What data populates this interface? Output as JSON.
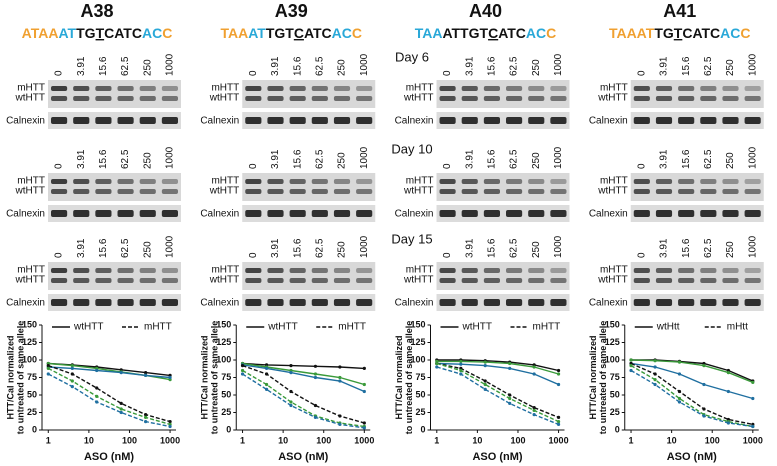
{
  "panels": [
    {
      "title": "A38",
      "sequence": [
        {
          "text": "ATAA",
          "color": "#f0a030"
        },
        {
          "text": "AT",
          "color": "#29a8d8"
        },
        {
          "text": "TG",
          "color": "#111111"
        },
        {
          "text": "T",
          "color": "#111111",
          "underline": true
        },
        {
          "text": "CATC",
          "color": "#111111"
        },
        {
          "text": "AC",
          "color": "#29a8d8"
        },
        {
          "text": "C",
          "color": "#f0a030"
        }
      ]
    },
    {
      "title": "A39",
      "sequence": [
        {
          "text": "TAA",
          "color": "#f0a030"
        },
        {
          "text": "AT",
          "color": "#29a8d8"
        },
        {
          "text": "TGT",
          "color": "#111111"
        },
        {
          "text": "C",
          "color": "#111111",
          "underline": true
        },
        {
          "text": "ATC",
          "color": "#111111"
        },
        {
          "text": "AC",
          "color": "#29a8d8"
        },
        {
          "text": "C",
          "color": "#f0a030"
        }
      ]
    },
    {
      "title": "A40",
      "sequence": [
        {
          "text": "TAA",
          "color": "#29a8d8"
        },
        {
          "text": "ATTGT",
          "color": "#111111"
        },
        {
          "text": "C",
          "color": "#111111",
          "underline": true
        },
        {
          "text": "ATC",
          "color": "#111111"
        },
        {
          "text": "AC",
          "color": "#29a8d8"
        },
        {
          "text": "C",
          "color": "#f0a030"
        }
      ]
    },
    {
      "title": "A41",
      "sequence": [
        {
          "text": "TAAAT",
          "color": "#f0a030"
        },
        {
          "text": "TG",
          "color": "#111111"
        },
        {
          "text": "T",
          "color": "#111111",
          "underline": true
        },
        {
          "text": "CATC",
          "color": "#111111"
        },
        {
          "text": "AC",
          "color": "#29a8d8"
        },
        {
          "text": "C",
          "color": "#f0a030"
        }
      ]
    }
  ],
  "blot": {
    "doses": [
      "0",
      "3.91",
      "15.6",
      "62.5",
      "250",
      "1000"
    ],
    "row_labels": [
      "mHTT",
      "wtHTT",
      "Calnexin"
    ],
    "days": [
      {
        "label": "Day 6",
        "color": "#111111"
      },
      {
        "label": "Day 10",
        "color": "#3a9a3a"
      },
      {
        "label": "Day 15",
        "color": "#2a6fa8"
      }
    ]
  },
  "chart_data": [
    {
      "type": "line",
      "xlabel": "ASO (nM)",
      "ylabel": [
        "HTT/Cal normalized",
        "to untreated of same allele"
      ],
      "legend": [
        {
          "label": "wtHTT",
          "dashed": false
        },
        {
          "label": "mHTT",
          "dashed": true
        }
      ],
      "x": [
        1,
        3.91,
        15.6,
        62.5,
        250,
        1000
      ],
      "xlog": true,
      "xlim": [
        0.7,
        1400
      ],
      "xticks": [
        1,
        10,
        100,
        1000
      ],
      "ylim": [
        0,
        150
      ],
      "yticks": [
        0,
        25,
        50,
        75,
        100,
        125,
        150
      ],
      "series": [
        {
          "color": "#111111",
          "dashed": false,
          "values": [
            95,
            93,
            90,
            86,
            82,
            78
          ]
        },
        {
          "color": "#3a9a3a",
          "dashed": false,
          "values": [
            95,
            92,
            88,
            83,
            78,
            72
          ]
        },
        {
          "color": "#1f6fa0",
          "dashed": false,
          "values": [
            90,
            88,
            85,
            82,
            78,
            75
          ]
        },
        {
          "color": "#111111",
          "dashed": true,
          "values": [
            92,
            80,
            60,
            38,
            22,
            12
          ]
        },
        {
          "color": "#3a9a3a",
          "dashed": true,
          "values": [
            88,
            70,
            48,
            30,
            18,
            8
          ]
        },
        {
          "color": "#1f6fa0",
          "dashed": true,
          "values": [
            80,
            62,
            40,
            25,
            12,
            5
          ]
        }
      ]
    },
    {
      "type": "line",
      "xlabel": "ASO (nM)",
      "ylabel": [
        "HTT/Cal normalized",
        "to untreated of same allele"
      ],
      "legend": [
        {
          "label": "wtHTT",
          "dashed": false
        },
        {
          "label": "mHTT",
          "dashed": true
        }
      ],
      "x": [
        1,
        3.91,
        15.6,
        62.5,
        250,
        1000
      ],
      "xlog": true,
      "xlim": [
        0.7,
        1400
      ],
      "xticks": [
        1,
        10,
        100,
        1000
      ],
      "ylim": [
        0,
        150
      ],
      "yticks": [
        0,
        25,
        50,
        75,
        100,
        125,
        150
      ],
      "series": [
        {
          "color": "#111111",
          "dashed": false,
          "values": [
            95,
            93,
            92,
            91,
            90,
            88
          ]
        },
        {
          "color": "#3a9a3a",
          "dashed": false,
          "values": [
            95,
            90,
            85,
            80,
            75,
            65
          ]
        },
        {
          "color": "#1f6fa0",
          "dashed": false,
          "values": [
            93,
            88,
            82,
            75,
            70,
            55
          ]
        },
        {
          "color": "#111111",
          "dashed": true,
          "values": [
            92,
            80,
            55,
            35,
            20,
            10
          ]
        },
        {
          "color": "#3a9a3a",
          "dashed": true,
          "values": [
            85,
            65,
            40,
            20,
            10,
            5
          ]
        },
        {
          "color": "#1f6fa0",
          "dashed": true,
          "values": [
            80,
            58,
            35,
            18,
            8,
            3
          ]
        }
      ]
    },
    {
      "type": "line",
      "xlabel": "ASO (nM)",
      "ylabel": [
        "HTT/Cal normalized",
        "to untreated of same allele"
      ],
      "legend": [
        {
          "label": "wtHTT",
          "dashed": false
        },
        {
          "label": "mHTT",
          "dashed": true
        }
      ],
      "x": [
        1,
        3.91,
        15.6,
        62.5,
        250,
        1000
      ],
      "xlog": true,
      "xlim": [
        0.7,
        1400
      ],
      "xticks": [
        1,
        10,
        100,
        1000
      ],
      "ylim": [
        0,
        150
      ],
      "yticks": [
        0,
        25,
        50,
        75,
        100,
        125,
        150
      ],
      "series": [
        {
          "color": "#111111",
          "dashed": false,
          "values": [
            100,
            100,
            99,
            97,
            93,
            85
          ]
        },
        {
          "color": "#3a9a3a",
          "dashed": false,
          "values": [
            98,
            98,
            97,
            95,
            90,
            80
          ]
        },
        {
          "color": "#1f6fa0",
          "dashed": false,
          "values": [
            95,
            94,
            92,
            88,
            80,
            65
          ]
        },
        {
          "color": "#111111",
          "dashed": true,
          "values": [
            95,
            88,
            70,
            50,
            32,
            18
          ]
        },
        {
          "color": "#3a9a3a",
          "dashed": true,
          "values": [
            95,
            85,
            65,
            45,
            28,
            12
          ]
        },
        {
          "color": "#1f6fa0",
          "dashed": true,
          "values": [
            90,
            80,
            58,
            38,
            22,
            8
          ]
        }
      ]
    },
    {
      "type": "line",
      "xlabel": "ASO (nM)",
      "ylabel": [
        "HTT/Cal normalized",
        "to untreated of same allele"
      ],
      "legend": [
        {
          "label": "wtHtt",
          "dashed": false
        },
        {
          "label": "mHtt",
          "dashed": true
        }
      ],
      "x": [
        1,
        3.91,
        15.6,
        62.5,
        250,
        1000
      ],
      "xlog": true,
      "xlim": [
        0.7,
        1400
      ],
      "xticks": [
        1,
        10,
        100,
        1000
      ],
      "ylim": [
        0,
        150
      ],
      "yticks": [
        0,
        25,
        50,
        75,
        100,
        125,
        150
      ],
      "series": [
        {
          "color": "#111111",
          "dashed": false,
          "values": [
            100,
            100,
            98,
            95,
            85,
            70
          ]
        },
        {
          "color": "#3a9a3a",
          "dashed": false,
          "values": [
            100,
            99,
            97,
            92,
            82,
            68
          ]
        },
        {
          "color": "#1f6fa0",
          "dashed": false,
          "values": [
            95,
            90,
            80,
            65,
            55,
            45
          ]
        },
        {
          "color": "#111111",
          "dashed": true,
          "values": [
            95,
            80,
            55,
            30,
            15,
            8
          ]
        },
        {
          "color": "#3a9a3a",
          "dashed": true,
          "values": [
            92,
            72,
            45,
            22,
            12,
            5
          ]
        },
        {
          "color": "#1f6fa0",
          "dashed": true,
          "values": [
            85,
            65,
            40,
            20,
            10,
            5
          ]
        }
      ]
    }
  ]
}
